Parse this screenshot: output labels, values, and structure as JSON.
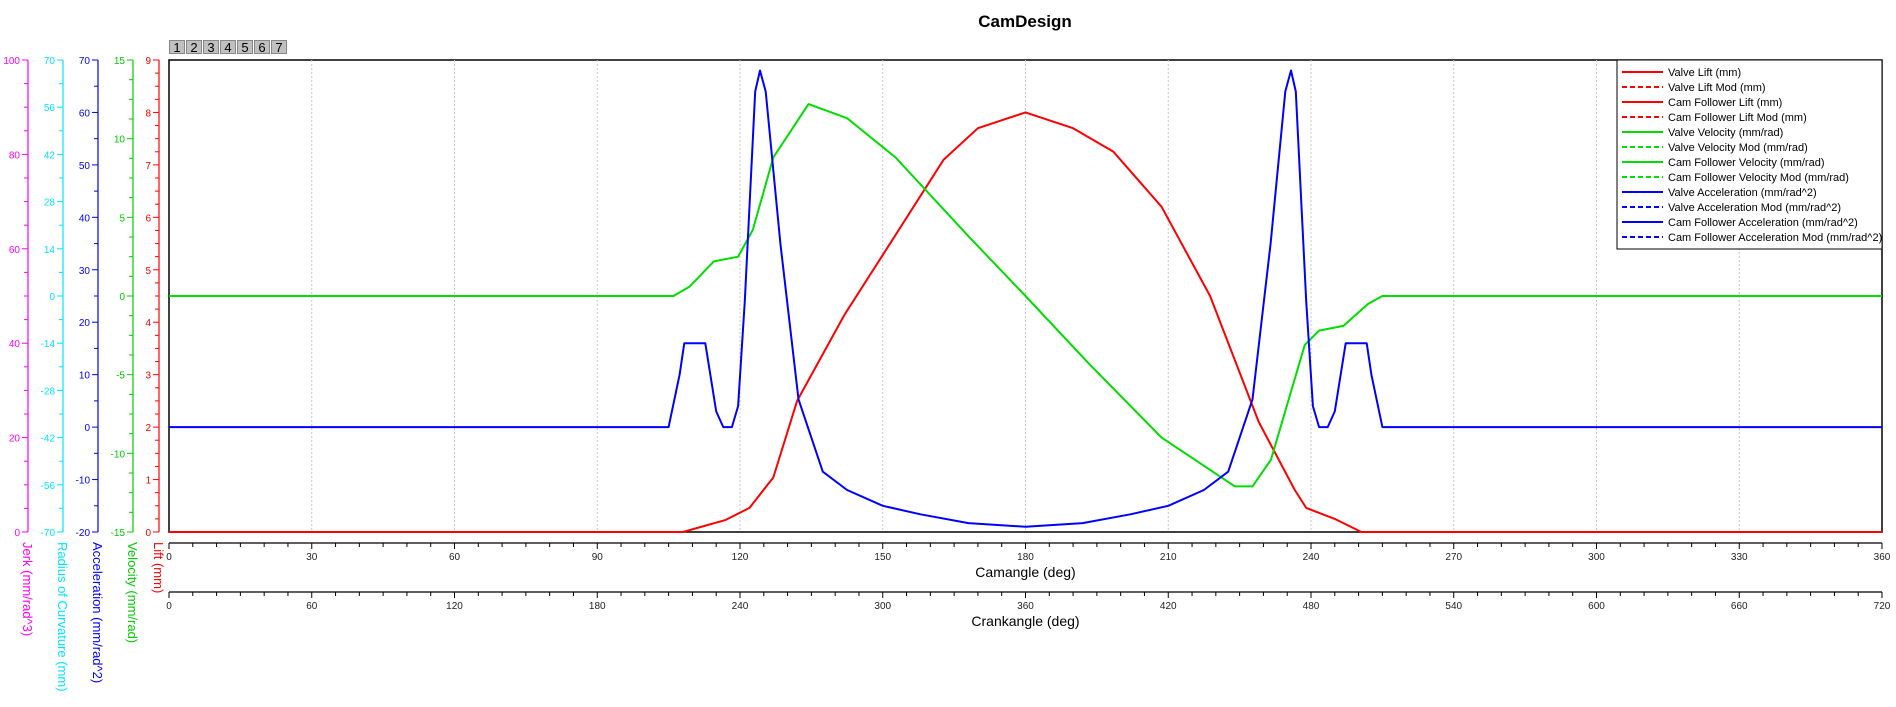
{
  "tabs": [
    "1",
    "2",
    "3",
    "4",
    "5",
    "6",
    "7"
  ],
  "chart_data": {
    "type": "line",
    "title": "CamDesign",
    "x_axes": [
      {
        "label": "Camangle (deg)",
        "range": [
          0,
          360
        ],
        "major": 30,
        "minor": 5
      },
      {
        "label": "Crankangle (deg)",
        "range": [
          0,
          720
        ],
        "major": 60,
        "minor": 10
      }
    ],
    "y_axes": [
      {
        "id": "jerk",
        "label": "Jerk (mm/rad^3)",
        "range": [
          0,
          100
        ],
        "major": 20,
        "minor": 5,
        "color": "#ff00ff"
      },
      {
        "id": "radius",
        "label": "Radius of Curvature (mm)",
        "range": [
          -70,
          70
        ],
        "major": 14,
        "minor": 7,
        "color": "#00e5ff"
      },
      {
        "id": "accel",
        "label": "Acceleration (mm/rad^2)",
        "range": [
          -20,
          70
        ],
        "major": 10,
        "minor": 5,
        "color": "#0000ff"
      },
      {
        "id": "vel",
        "label": "Velocity (mm/rad)",
        "range": [
          -15,
          15
        ],
        "major": 5,
        "minor": 1.25,
        "color": "#00cc00"
      },
      {
        "id": "lift",
        "label": "Lift (mm)",
        "range": [
          0,
          9
        ],
        "major": 1,
        "minor": 0.25,
        "color": "#ff0000"
      }
    ],
    "grid": "vertical-dotted",
    "legend_position": "top-right",
    "legend": [
      {
        "label": "Valve Lift (mm)",
        "color": "#ff0000",
        "dash": false
      },
      {
        "label": "Valve Lift Mod (mm)",
        "color": "#ff0000",
        "dash": true
      },
      {
        "label": "Cam Follower Lift (mm)",
        "color": "#ff0000",
        "dash": false
      },
      {
        "label": "Cam Follower Lift Mod (mm)",
        "color": "#ff0000",
        "dash": true
      },
      {
        "label": "Valve Velocity (mm/rad)",
        "color": "#00dd00",
        "dash": false
      },
      {
        "label": "Valve Velocity Mod (mm/rad)",
        "color": "#00dd00",
        "dash": true
      },
      {
        "label": "Cam Follower Velocity (mm/rad)",
        "color": "#00dd00",
        "dash": false
      },
      {
        "label": "Cam Follower Velocity Mod (mm/rad)",
        "color": "#00dd00",
        "dash": true
      },
      {
        "label": "Valve Acceleration (mm/rad^2)",
        "color": "#0000ff",
        "dash": false
      },
      {
        "label": "Valve Acceleration Mod (mm/rad^2)",
        "color": "#0000ff",
        "dash": true
      },
      {
        "label": "Cam Follower Acceleration (mm/rad^2)",
        "color": "#0000ff",
        "dash": false
      },
      {
        "label": "Cam Follower Acceleration Mod (mm/rad^2)",
        "color": "#0000ff",
        "dash": true
      }
    ],
    "series": [
      {
        "name": "Valve Lift (mm)",
        "axis": "lift",
        "color": "#ff0000",
        "x": [
          0,
          108,
          117,
          122,
          127,
          132,
          142,
          152.6,
          162.8,
          170,
          180,
          190,
          198.5,
          208.6,
          218.8,
          229,
          236.6,
          239,
          245,
          250.6,
          360
        ],
        "y": [
          0,
          0,
          0.23,
          0.46,
          1.04,
          2.5,
          4.15,
          5.65,
          7.1,
          7.7,
          8.0,
          7.7,
          7.25,
          6.2,
          4.5,
          2.1,
          0.8,
          0.46,
          0.25,
          0,
          0
        ]
      },
      {
        "name": "Valve Velocity (mm/rad)",
        "axis": "vel",
        "color": "#00dd00",
        "x": [
          0,
          106,
          109.4,
          114.5,
          119.6,
          122.7,
          127,
          134.4,
          142.5,
          152.7,
          168,
          180,
          193,
          208.6,
          224,
          227.7,
          231.6,
          238.7,
          241.7,
          246.8,
          252,
          255,
          360
        ],
        "y": [
          0,
          0,
          0.6,
          2.2,
          2.5,
          4.2,
          8.8,
          12.2,
          11.3,
          8.8,
          3.8,
          0,
          -4.2,
          -9,
          -12.1,
          -12.1,
          -10.4,
          -3.1,
          -2.2,
          -1.9,
          -0.5,
          0,
          0
        ]
      },
      {
        "name": "Valve Acceleration (mm/rad^2)",
        "axis": "accel",
        "color": "#0000ff",
        "x": [
          0,
          105,
          107.3,
          108.3,
          112.7,
          115,
          116.5,
          118.3,
          119.6,
          121,
          123.2,
          124.2,
          125.4,
          128.5,
          132.3,
          137.4,
          142.5,
          150,
          157.8,
          168,
          180,
          192,
          202.2,
          210,
          217.5,
          222.6,
          227.7,
          231.5,
          234.6,
          235.8,
          236.8,
          239,
          240.4,
          241.7,
          243.5,
          245,
          247.3,
          251.7,
          252.7,
          255,
          360
        ],
        "y": [
          0,
          0,
          10,
          16,
          16,
          3,
          0,
          0,
          4,
          24,
          64,
          68,
          64,
          35,
          5.3,
          -8.5,
          -12,
          -15,
          -16.6,
          -18.3,
          -19,
          -18.3,
          -16.6,
          -15,
          -12,
          -8.5,
          5.3,
          35,
          64,
          68,
          64,
          24,
          4,
          0,
          0,
          3,
          16,
          16,
          10,
          0,
          0
        ]
      }
    ]
  }
}
